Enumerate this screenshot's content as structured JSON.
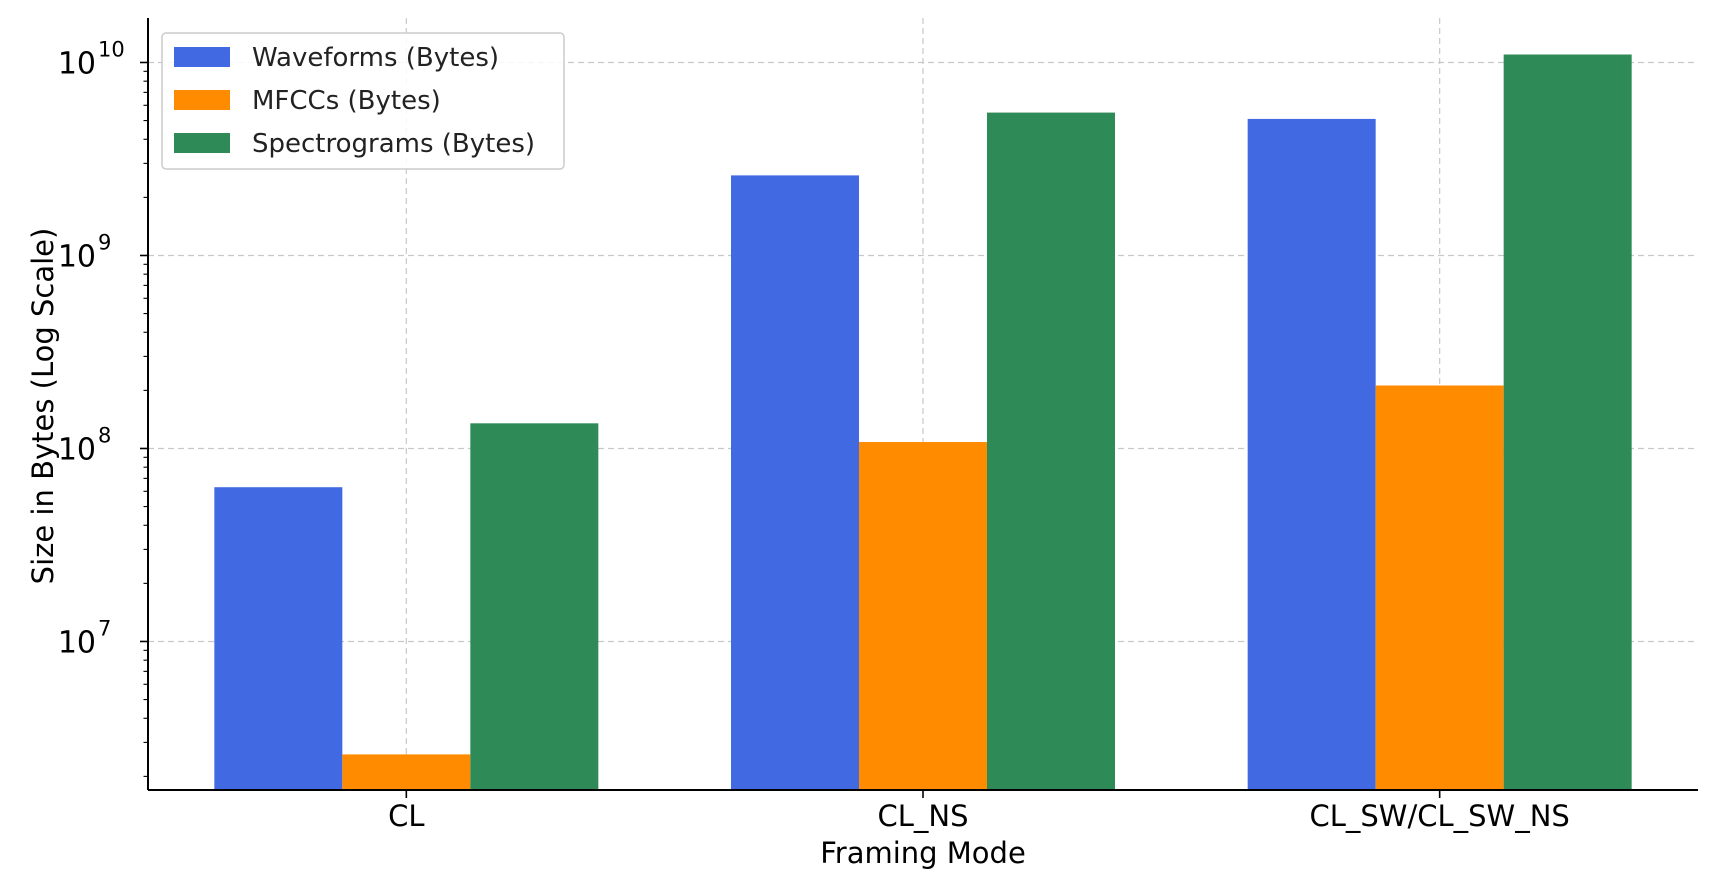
{
  "chart_data": {
    "type": "bar",
    "title": "",
    "xlabel": "Framing Mode",
    "ylabel": "Size in Bytes (Log Scale)",
    "yscale": "log",
    "ylim": [
      1700000,
      17000000000
    ],
    "grid": true,
    "legend_position": "top-left",
    "categories": [
      "CL",
      "CL_NS",
      "CL_SW/CL_SW_NS"
    ],
    "series": [
      {
        "name": "Waveforms (Bytes)",
        "color": "#4169e1",
        "values": [
          63000000,
          2600000000,
          5100000000
        ]
      },
      {
        "name": "MFCCs (Bytes)",
        "color": "#ff8c00",
        "values": [
          2600000,
          108000000,
          212000000
        ]
      },
      {
        "name": "Spectrograms (Bytes)",
        "color": "#2e8b57",
        "values": [
          135000000,
          5500000000,
          11000000000
        ]
      }
    ],
    "yticks": [
      {
        "base": "10",
        "exp": "7",
        "value": 10000000
      },
      {
        "base": "10",
        "exp": "8",
        "value": 100000000
      },
      {
        "base": "10",
        "exp": "9",
        "value": 1000000000
      },
      {
        "base": "10",
        "exp": "10",
        "value": 10000000000
      }
    ]
  }
}
